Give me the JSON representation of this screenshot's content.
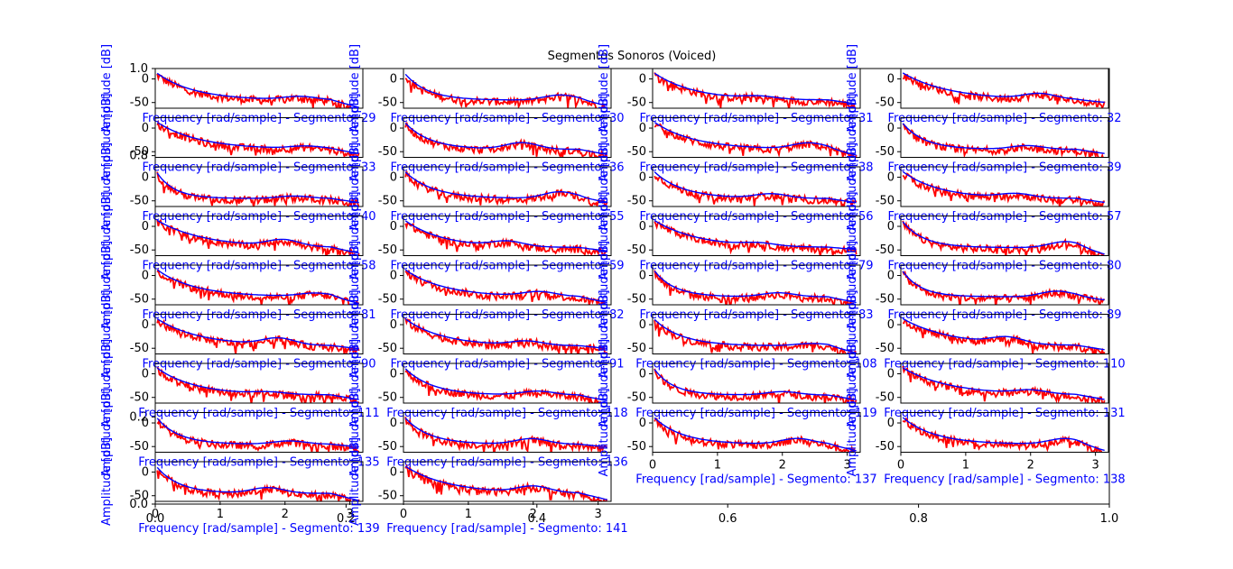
{
  "chart_data": {
    "type": "line",
    "title": "Segmentos Sonoros (Voiced)",
    "label_color": "#0000ff",
    "series_colors": {
      "envelope": "#0000ff",
      "spectrum": "#ff0000"
    },
    "ylabel": "Amplitude [dB]",
    "xlabel_prefix": "Frequency [rad/sample] - Segmento: ",
    "segments": [
      29,
      30,
      31,
      32,
      33,
      36,
      38,
      39,
      40,
      55,
      56,
      57,
      58,
      59,
      79,
      80,
      81,
      82,
      83,
      89,
      90,
      91,
      108,
      110,
      111,
      118,
      119,
      131,
      135,
      136,
      137,
      138,
      139,
      141
    ],
    "xlim": [
      0,
      3.2
    ],
    "ylim": [
      -62,
      22
    ],
    "x_ticks": [
      0,
      1,
      2,
      3
    ],
    "y_ticks": [
      0,
      -50
    ],
    "overlay_axis": {
      "x_ticks": [
        "0.0",
        "0.2",
        "0.4",
        "0.6",
        "0.8",
        "1.0"
      ],
      "y_ticks": [
        "0.0",
        "0.2",
        "0.8",
        "1.0"
      ]
    },
    "grid": false,
    "legend": "none"
  }
}
